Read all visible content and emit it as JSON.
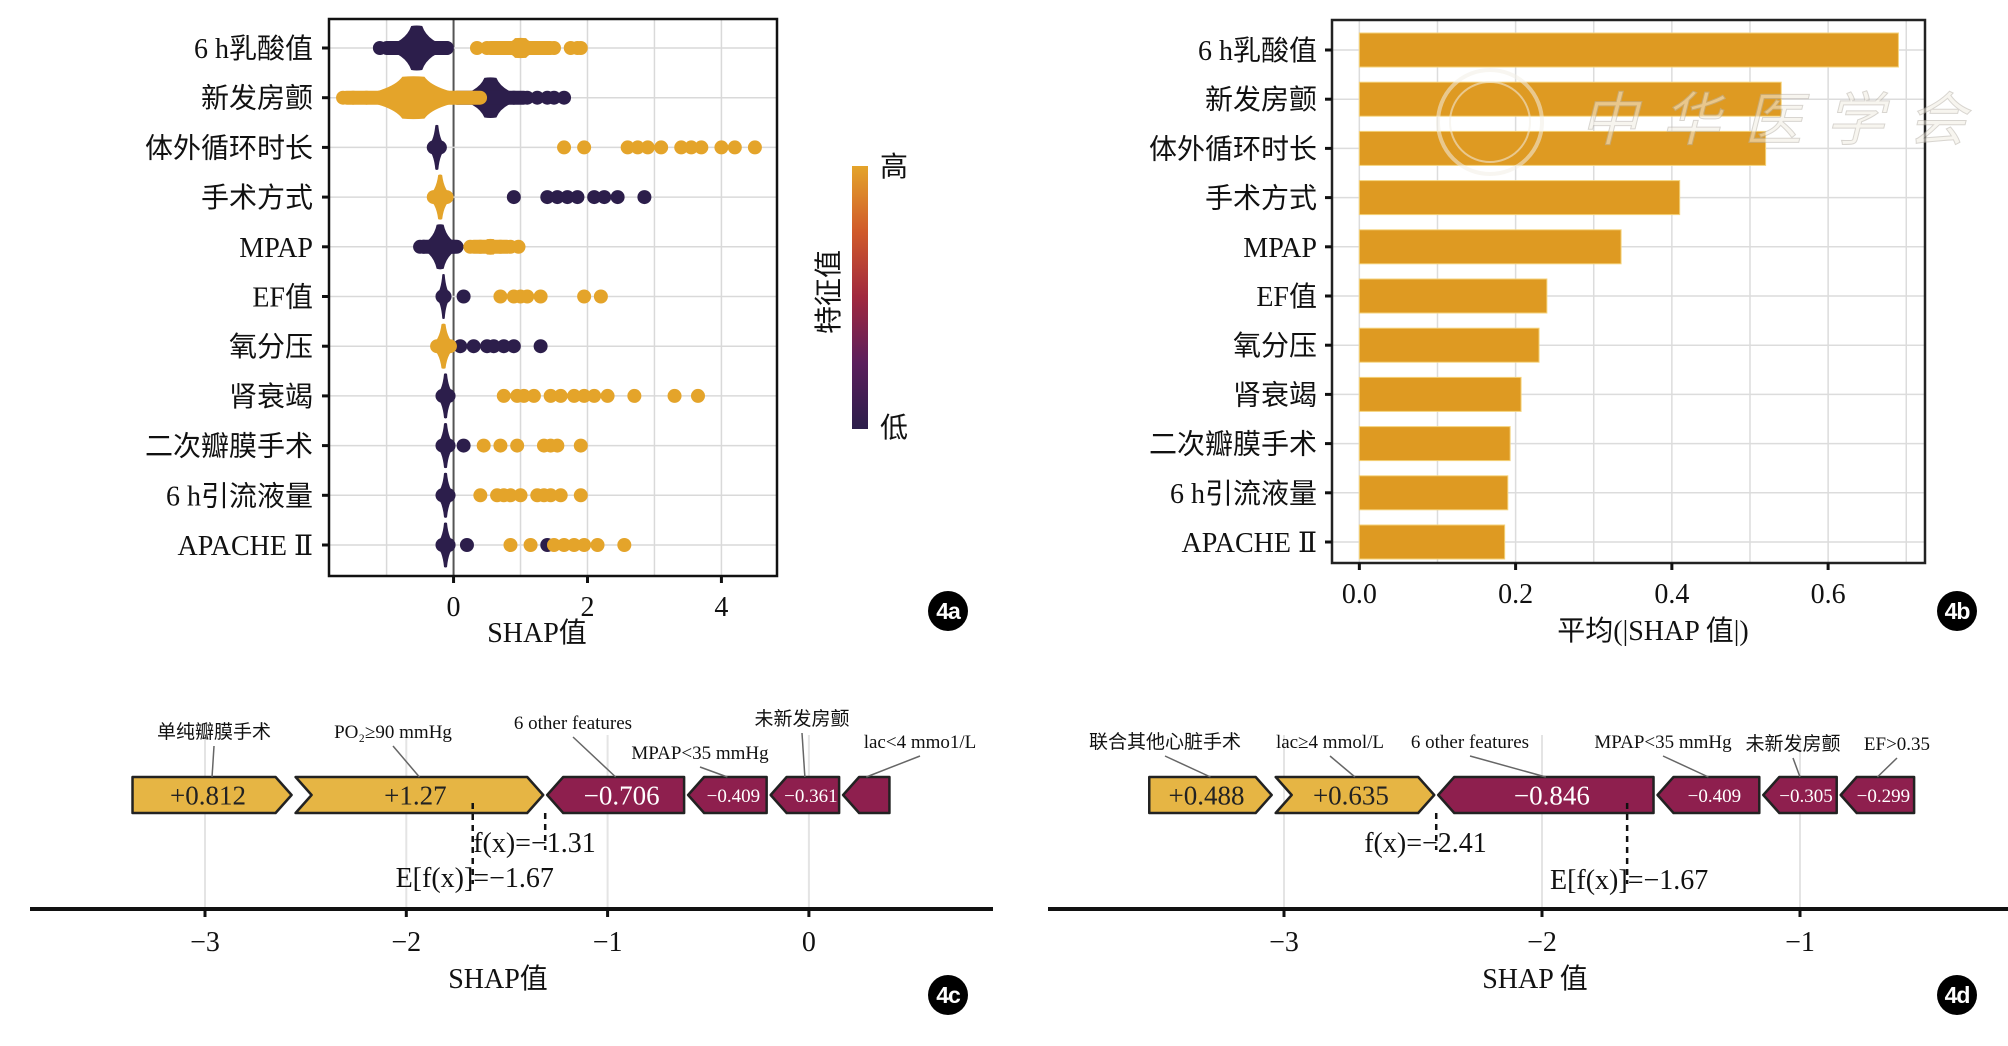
{
  "figure": {
    "watermark": "中华医学会",
    "panel_labels": [
      "4a",
      "4b",
      "4c",
      "4d"
    ]
  },
  "colors": {
    "high": "#E4A42A",
    "low": "#2C1E4B",
    "bar": "#DE9A22",
    "positive_arrow": "#E6B544",
    "negative_arrow": "#8E1F4E",
    "colorbar_stops": [
      "#2C1E4B",
      "#5B1F5C",
      "#A0283F",
      "#D05A2A",
      "#E4A42A"
    ]
  },
  "chart_data": [
    {
      "id": "4a",
      "type": "scatter",
      "subtype": "shap-beeswarm",
      "xlabel": "SHAP值",
      "ylabel": "",
      "xlim": [
        -1.86,
        4.83
      ],
      "xticks": [
        0,
        2,
        4
      ],
      "xgrid": [
        -1,
        0,
        1,
        2,
        3,
        4
      ],
      "grid": true,
      "features": [
        "6 h乳酸值",
        "新发房颤",
        "体外循环时长",
        "手术方式",
        "MPAP",
        "EF值",
        "氧分压",
        "肾衰竭",
        "二次瓣膜手术",
        "6 h引流液量",
        "APACHE Ⅱ"
      ],
      "colorbar": {
        "title": "特征值",
        "high_label": "高",
        "low_label": "低",
        "placement": "right"
      },
      "clusters": [
        {
          "feature": "6 h乳酸值",
          "low": {
            "center": -0.55,
            "spread": 0.55,
            "height": 1.0,
            "dots": [
              -1.1,
              -0.9,
              -0.2,
              -0.1
            ]
          },
          "high": {
            "center": 1.0,
            "spread": 0.55,
            "height": 0.45,
            "dots": [
              0.35,
              0.5,
              0.7,
              1.3,
              1.5,
              1.75,
              1.85,
              1.9
            ]
          }
        },
        {
          "feature": "新发房颤",
          "high": {
            "center": -0.6,
            "spread": 1.1,
            "height": 0.95,
            "dots": [
              -1.65,
              -1.5,
              -1.3,
              -1.1,
              -0.2,
              -0.1,
              0.05
            ]
          },
          "low": {
            "center": 0.55,
            "spread": 0.6,
            "height": 0.9,
            "dots": [
              0.9,
              1.1,
              1.25,
              1.4,
              1.5,
              1.65
            ]
          }
        },
        {
          "feature": "体外循环时长",
          "low": {
            "center": -0.25,
            "spread": 0.15,
            "height": 1.0,
            "dots": []
          },
          "high": {
            "center": 3.0,
            "spread": 0,
            "height": 0,
            "dots": [
              1.65,
              1.95,
              2.6,
              2.75,
              2.9,
              3.1,
              3.4,
              3.55,
              3.7,
              4.0,
              4.2,
              4.5
            ]
          }
        },
        {
          "feature": "手术方式",
          "high": {
            "center": -0.2,
            "spread": 0.2,
            "height": 1.0,
            "dots": []
          },
          "low": {
            "center": 2.0,
            "spread": 0,
            "height": 0,
            "dots": [
              0.9,
              1.4,
              1.55,
              1.7,
              1.85,
              2.1,
              2.25,
              2.45,
              2.85
            ]
          }
        },
        {
          "feature": "MPAP",
          "low": {
            "center": -0.2,
            "spread": 0.35,
            "height": 1.0,
            "dots": [
              -0.5,
              -0.45,
              0.0
            ]
          },
          "high": {
            "center": 0.55,
            "spread": 0.35,
            "height": 0.35,
            "dots": [
              0.25,
              0.4,
              0.7,
              0.85,
              0.97
            ]
          }
        },
        {
          "feature": "EF值",
          "low": {
            "center": -0.15,
            "spread": 0.12,
            "height": 1.0,
            "dots": [
              0.15
            ]
          },
          "high": {
            "center": 1.05,
            "spread": 0,
            "height": 0,
            "dots": [
              0.7,
              0.9,
              1.0,
              1.1,
              1.3,
              1.95,
              2.2
            ]
          }
        },
        {
          "feature": "氧分压",
          "high": {
            "center": -0.15,
            "spread": 0.2,
            "height": 1.0,
            "dots": []
          },
          "low": {
            "center": 0.55,
            "spread": 0,
            "height": 0,
            "dots": [
              0.1,
              0.3,
              0.5,
              0.6,
              0.75,
              0.9,
              1.3
            ]
          }
        },
        {
          "feature": "肾衰竭",
          "low": {
            "center": -0.12,
            "spread": 0.15,
            "height": 1.0,
            "dots": []
          },
          "high": {
            "center": 1.5,
            "spread": 0,
            "height": 0,
            "dots": [
              0.75,
              0.95,
              1.05,
              1.2,
              1.45,
              1.6,
              1.8,
              1.95,
              2.1,
              2.3,
              2.7,
              3.3,
              3.65
            ]
          }
        },
        {
          "feature": "二次瓣膜手术",
          "low": {
            "center": -0.12,
            "spread": 0.15,
            "height": 1.0,
            "dots": [
              0.15
            ]
          },
          "high": {
            "center": 1.0,
            "spread": 0,
            "height": 0,
            "dots": [
              0.45,
              0.7,
              0.95,
              1.35,
              1.45,
              1.55,
              1.9
            ]
          }
        },
        {
          "feature": "6 h引流液量",
          "low": {
            "center": -0.12,
            "spread": 0.15,
            "height": 1.0,
            "dots": []
          },
          "high": {
            "center": 1.0,
            "spread": 0,
            "height": 0,
            "dots": [
              0.4,
              0.65,
              0.75,
              0.85,
              1.0,
              1.25,
              1.35,
              1.45,
              1.6,
              1.9
            ]
          }
        },
        {
          "feature": "APACHE Ⅱ",
          "low": {
            "center": -0.12,
            "spread": 0.15,
            "height": 1.0,
            "dots": [
              0.2,
              1.4
            ]
          },
          "high": {
            "center": 1.5,
            "spread": 0,
            "height": 0,
            "dots": [
              0.85,
              1.15,
              1.5,
              1.65,
              1.8,
              1.95,
              2.15,
              2.55
            ]
          }
        }
      ]
    },
    {
      "id": "4b",
      "type": "bar",
      "orientation": "horizontal",
      "categories": [
        "6 h乳酸值",
        "新发房颤",
        "体外循环时长",
        "手术方式",
        "MPAP",
        "EF值",
        "氧分压",
        "肾衰竭",
        "二次瓣膜手术",
        "6 h引流液量",
        "APACHE Ⅱ"
      ],
      "values": [
        0.69,
        0.54,
        0.52,
        0.41,
        0.335,
        0.24,
        0.23,
        0.207,
        0.193,
        0.19,
        0.186
      ],
      "xlabel": "平均(|SHAP 值|)",
      "ylabel": "",
      "xlim": [
        -0.035,
        0.724
      ],
      "xticks": [
        "0.0",
        "0.2",
        "0.4",
        "0.6"
      ],
      "xtick_values": [
        0,
        0.2,
        0.4,
        0.6
      ],
      "grid": true
    },
    {
      "id": "4c",
      "type": "bar",
      "subtype": "shap-force-plot",
      "xlabel": "SHAP值",
      "xlim": [
        -3.95,
        0.84
      ],
      "xticks": [
        "−3",
        "−2",
        "−1",
        "0"
      ],
      "xtick_values": [
        -3,
        -2,
        -1,
        0
      ],
      "base_value": -1.67,
      "base_label": "E[f(x)]=−1.67",
      "output_value": -1.31,
      "output_label": "f(x)=−1.31",
      "segments": [
        {
          "feature": "单纯瓣膜手术",
          "label": "+0.812",
          "value": 0.812,
          "sign": "positive",
          "start": -3.37,
          "end": -2.56
        },
        {
          "feature": "PO₂≥90 mmHg",
          "label": "+1.27",
          "value": 1.27,
          "sign": "positive",
          "start": -2.56,
          "end": -1.31
        },
        {
          "feature": "6 other features",
          "label": "−0.706",
          "value": -0.706,
          "sign": "negative",
          "start": -1.31,
          "end": -0.61
        },
        {
          "feature": "MPAP<35 mmHg",
          "label": "−0.409",
          "value": -0.409,
          "sign": "negative",
          "start": -0.61,
          "end": -0.2
        },
        {
          "feature": "未新发房颤",
          "label": "−0.361",
          "value": -0.361,
          "sign": "negative",
          "start": -0.2,
          "end": 0.16
        },
        {
          "feature": "lac<4 mmo1/L",
          "label": "",
          "value": null,
          "sign": "negative",
          "start": 0.16,
          "end": 0.41
        }
      ]
    },
    {
      "id": "4d",
      "type": "bar",
      "subtype": "shap-force-plot",
      "xlabel": "SHAP 值",
      "xlim": [
        -3.91,
        -0.4
      ],
      "xticks": [
        "−3",
        "−2",
        "−1"
      ],
      "xtick_values": [
        -3,
        -2,
        -1
      ],
      "base_value": -1.67,
      "base_label": "E[f(x)]=−1.67",
      "output_value": -2.41,
      "output_label": "f(x)=−2.41",
      "segments": [
        {
          "feature": "联合其他心脏手术",
          "label": "+0.488",
          "value": 0.488,
          "sign": "positive",
          "start": -3.53,
          "end": -3.04
        },
        {
          "feature": "lac≥4 mmol/L",
          "label": "+0.635",
          "value": 0.635,
          "sign": "positive",
          "start": -3.04,
          "end": -2.41
        },
        {
          "feature": "6 other features",
          "label": "−0.846",
          "value": -0.846,
          "sign": "negative",
          "start": -2.41,
          "end": -1.56
        },
        {
          "feature": "MPAP<35 mmHg",
          "label": "−0.409",
          "value": -0.409,
          "sign": "negative",
          "start": -1.56,
          "end": -1.15
        },
        {
          "feature": "未新发房颤",
          "label": "−0.305",
          "value": -0.305,
          "sign": "negative",
          "start": -1.15,
          "end": -0.85
        },
        {
          "feature": "EF>0.35",
          "label": "−0.299",
          "value": -0.299,
          "sign": "negative",
          "start": -0.85,
          "end": -0.55
        }
      ]
    }
  ]
}
